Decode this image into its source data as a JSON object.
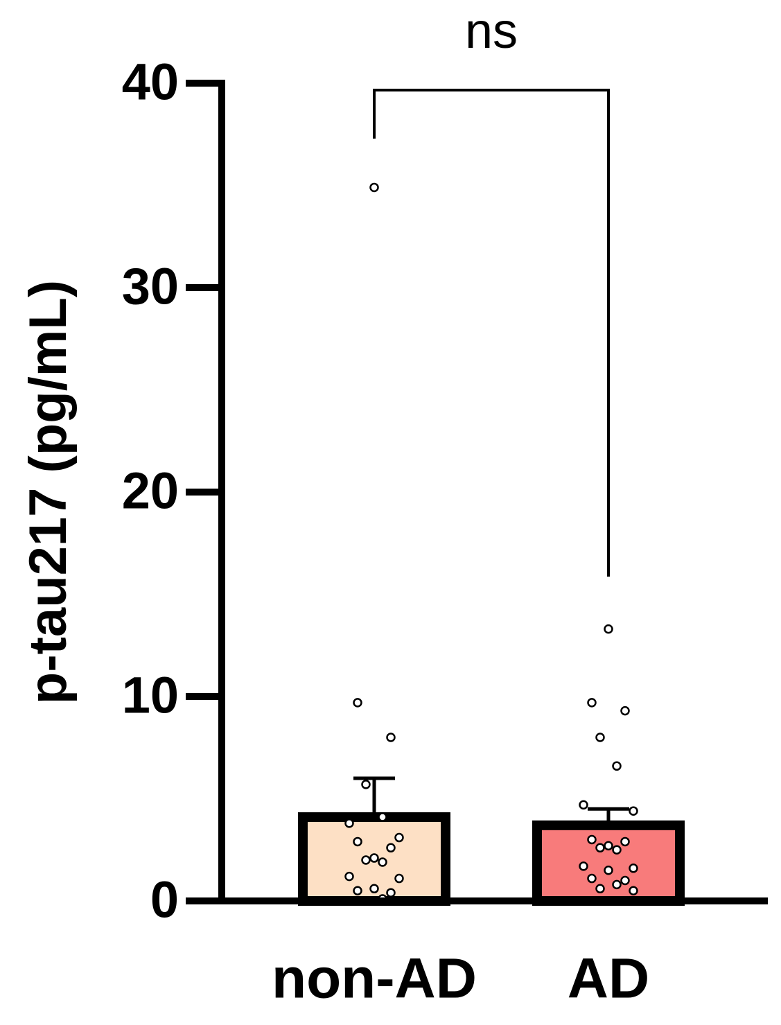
{
  "chart_data": {
    "type": "bar",
    "ylabel": "p-tau217 (pg/mL)",
    "annotation": "ns",
    "categories": [
      "non-AD",
      "AD"
    ],
    "values": [
      4.1,
      3.7
    ],
    "errors": [
      1.9,
      0.8
    ],
    "colors": [
      "#fde0c5",
      "#f87b7b"
    ],
    "points": [
      [
        34.9,
        9.7,
        8.0,
        5.7,
        4.1,
        3.8,
        3.1,
        2.9,
        2.6,
        2.1,
        2.0,
        1.9,
        1.2,
        1.1,
        0.6,
        0.5,
        0.4,
        0.1
      ],
      [
        13.3,
        9.7,
        9.3,
        8.0,
        6.6,
        4.7,
        4.4,
        3.0,
        2.9,
        2.7,
        2.6,
        2.5,
        1.7,
        1.6,
        1.5,
        1.1,
        1.0,
        0.8,
        0.6,
        0.5
      ]
    ],
    "ylim": [
      0,
      40
    ],
    "yticks": [
      0,
      10,
      20,
      30,
      40
    ]
  }
}
